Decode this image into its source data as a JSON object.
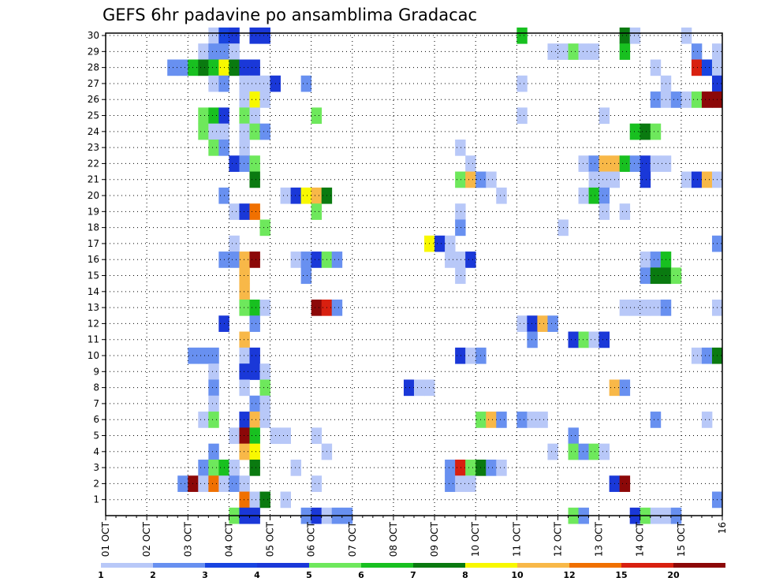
{
  "chart_data": {
    "type": "heatmap",
    "title": "GEFS 6hr padavine po ansamblima Gradacac",
    "xlabel": "",
    "ylabel": "",
    "x_ticks": [
      "01 OCT",
      "02 OCT",
      "03 OCT",
      "04 OCT",
      "05 OCT",
      "06 OCT",
      "07 OCT",
      "08 OCT",
      "09 OCT",
      "10 OCT",
      "11 OCT",
      "12 OCT",
      "13 OCT",
      "14 OCT",
      "15 OCT",
      "16"
    ],
    "y_ticks": [
      "1",
      "2",
      "3",
      "4",
      "5",
      "6",
      "7",
      "8",
      "9",
      "10",
      "11",
      "12",
      "13",
      "14",
      "15",
      "16",
      "17",
      "18",
      "19",
      "20",
      "21",
      "22",
      "23",
      "24",
      "25",
      "26",
      "27",
      "28",
      "29",
      "30"
    ],
    "colorbar": {
      "labels": [
        "1",
        "2",
        "3",
        "4",
        "5",
        "6",
        "7",
        "8",
        "10",
        "12",
        "15",
        "20"
      ],
      "colors": [
        "#b8c8f8",
        "#6890f0",
        "#1844e0",
        "#1a38d8",
        "#6ee85c",
        "#18c020",
        "#0a7a10",
        "#f8f800",
        "#f8b848",
        "#f07000",
        "#d82010",
        "#8c0808"
      ]
    },
    "grid": true,
    "x_unit": "6-hour steps from 01 OCT 00Z",
    "y_unit": "ensemble member",
    "cells": [
      [
        10,
        30,
        1
      ],
      [
        11,
        30,
        3
      ],
      [
        12,
        30,
        4
      ],
      [
        14,
        30,
        4
      ],
      [
        15,
        30,
        4
      ],
      [
        40,
        30,
        6
      ],
      [
        50,
        30,
        7
      ],
      [
        51,
        30,
        1
      ],
      [
        56,
        30,
        1
      ],
      [
        9,
        29,
        1
      ],
      [
        10,
        29,
        2
      ],
      [
        11,
        29,
        2
      ],
      [
        12,
        29,
        1
      ],
      [
        43,
        29,
        1
      ],
      [
        44,
        29,
        1
      ],
      [
        45,
        29,
        5
      ],
      [
        46,
        29,
        1
      ],
      [
        47,
        29,
        1
      ],
      [
        50,
        29,
        6
      ],
      [
        57,
        29,
        2
      ],
      [
        59,
        29,
        1
      ],
      [
        6,
        28,
        2
      ],
      [
        7,
        28,
        2
      ],
      [
        8,
        28,
        6
      ],
      [
        9,
        28,
        7
      ],
      [
        10,
        28,
        6
      ],
      [
        11,
        28,
        8
      ],
      [
        12,
        28,
        7
      ],
      [
        13,
        28,
        4
      ],
      [
        14,
        28,
        4
      ],
      [
        53,
        28,
        1
      ],
      [
        57,
        28,
        11
      ],
      [
        58,
        28,
        3
      ],
      [
        59,
        28,
        1
      ],
      [
        10,
        27,
        1
      ],
      [
        11,
        27,
        2
      ],
      [
        13,
        27,
        1
      ],
      [
        14,
        27,
        1
      ],
      [
        15,
        27,
        1
      ],
      [
        16,
        27,
        4
      ],
      [
        19,
        27,
        2
      ],
      [
        40,
        27,
        1
      ],
      [
        54,
        27,
        1
      ],
      [
        59,
        27,
        4
      ],
      [
        13,
        26,
        1
      ],
      [
        14,
        26,
        8
      ],
      [
        15,
        26,
        1
      ],
      [
        53,
        26,
        2
      ],
      [
        54,
        26,
        1
      ],
      [
        55,
        26,
        2
      ],
      [
        56,
        26,
        1
      ],
      [
        57,
        26,
        5
      ],
      [
        58,
        26,
        12
      ],
      [
        59,
        26,
        12
      ],
      [
        9,
        25,
        5
      ],
      [
        10,
        25,
        6
      ],
      [
        11,
        25,
        4
      ],
      [
        13,
        25,
        5
      ],
      [
        14,
        25,
        1
      ],
      [
        20,
        25,
        5
      ],
      [
        40,
        25,
        1
      ],
      [
        48,
        25,
        1
      ],
      [
        9,
        24,
        5
      ],
      [
        10,
        24,
        1
      ],
      [
        11,
        24,
        1
      ],
      [
        13,
        24,
        1
      ],
      [
        14,
        24,
        5
      ],
      [
        15,
        24,
        2
      ],
      [
        51,
        24,
        6
      ],
      [
        52,
        24,
        7
      ],
      [
        53,
        24,
        5
      ],
      [
        10,
        23,
        5
      ],
      [
        11,
        23,
        2
      ],
      [
        13,
        23,
        1
      ],
      [
        34,
        23,
        1
      ],
      [
        12,
        22,
        4
      ],
      [
        13,
        22,
        2
      ],
      [
        14,
        22,
        5
      ],
      [
        35,
        22,
        1
      ],
      [
        46,
        22,
        1
      ],
      [
        47,
        22,
        2
      ],
      [
        48,
        22,
        9
      ],
      [
        49,
        22,
        9
      ],
      [
        50,
        22,
        6
      ],
      [
        51,
        22,
        2
      ],
      [
        52,
        22,
        4
      ],
      [
        53,
        22,
        1
      ],
      [
        54,
        22,
        1
      ],
      [
        14,
        21,
        7
      ],
      [
        34,
        21,
        5
      ],
      [
        35,
        21,
        9
      ],
      [
        36,
        21,
        2
      ],
      [
        37,
        21,
        1
      ],
      [
        47,
        21,
        1
      ],
      [
        48,
        21,
        1
      ],
      [
        49,
        21,
        1
      ],
      [
        52,
        21,
        4
      ],
      [
        56,
        21,
        1
      ],
      [
        57,
        21,
        4
      ],
      [
        58,
        21,
        9
      ],
      [
        59,
        21,
        1
      ],
      [
        11,
        20,
        2
      ],
      [
        17,
        20,
        1
      ],
      [
        18,
        20,
        4
      ],
      [
        19,
        20,
        8
      ],
      [
        20,
        20,
        9
      ],
      [
        21,
        20,
        7
      ],
      [
        38,
        20,
        1
      ],
      [
        46,
        20,
        1
      ],
      [
        47,
        20,
        6
      ],
      [
        48,
        20,
        2
      ],
      [
        12,
        19,
        1
      ],
      [
        13,
        19,
        4
      ],
      [
        14,
        19,
        10
      ],
      [
        20,
        19,
        5
      ],
      [
        34,
        19,
        1
      ],
      [
        48,
        19,
        1
      ],
      [
        50,
        19,
        1
      ],
      [
        15,
        18,
        5
      ],
      [
        34,
        18,
        2
      ],
      [
        44,
        18,
        1
      ],
      [
        12,
        17,
        1
      ],
      [
        31,
        17,
        8
      ],
      [
        32,
        17,
        4
      ],
      [
        33,
        17,
        1
      ],
      [
        59,
        17,
        2
      ],
      [
        11,
        16,
        2
      ],
      [
        12,
        16,
        2
      ],
      [
        13,
        16,
        9
      ],
      [
        14,
        16,
        12
      ],
      [
        18,
        16,
        1
      ],
      [
        19,
        16,
        2
      ],
      [
        20,
        16,
        4
      ],
      [
        21,
        16,
        5
      ],
      [
        22,
        16,
        2
      ],
      [
        33,
        16,
        1
      ],
      [
        34,
        16,
        1
      ],
      [
        35,
        16,
        4
      ],
      [
        52,
        16,
        1
      ],
      [
        53,
        16,
        2
      ],
      [
        54,
        16,
        6
      ],
      [
        13,
        15,
        9
      ],
      [
        19,
        15,
        2
      ],
      [
        34,
        15,
        1
      ],
      [
        52,
        15,
        2
      ],
      [
        53,
        15,
        7
      ],
      [
        54,
        15,
        7
      ],
      [
        55,
        15,
        5
      ],
      [
        13,
        14,
        9
      ],
      [
        13,
        13,
        5
      ],
      [
        14,
        13,
        6
      ],
      [
        15,
        13,
        1
      ],
      [
        20,
        13,
        12
      ],
      [
        21,
        13,
        11
      ],
      [
        22,
        13,
        2
      ],
      [
        50,
        13,
        1
      ],
      [
        51,
        13,
        1
      ],
      [
        52,
        13,
        1
      ],
      [
        53,
        13,
        1
      ],
      [
        54,
        13,
        2
      ],
      [
        59,
        13,
        1
      ],
      [
        11,
        12,
        4
      ],
      [
        14,
        12,
        2
      ],
      [
        40,
        12,
        1
      ],
      [
        41,
        12,
        4
      ],
      [
        42,
        12,
        9
      ],
      [
        43,
        12,
        2
      ],
      [
        13,
        11,
        9
      ],
      [
        41,
        11,
        2
      ],
      [
        45,
        11,
        4
      ],
      [
        46,
        11,
        5
      ],
      [
        47,
        11,
        1
      ],
      [
        48,
        11,
        4
      ],
      [
        8,
        10,
        2
      ],
      [
        9,
        10,
        2
      ],
      [
        10,
        10,
        2
      ],
      [
        13,
        10,
        1
      ],
      [
        14,
        10,
        4
      ],
      [
        34,
        10,
        4
      ],
      [
        35,
        10,
        1
      ],
      [
        36,
        10,
        2
      ],
      [
        57,
        10,
        1
      ],
      [
        58,
        10,
        2
      ],
      [
        59,
        10,
        7
      ],
      [
        10,
        9,
        1
      ],
      [
        13,
        9,
        4
      ],
      [
        14,
        9,
        4
      ],
      [
        15,
        9,
        1
      ],
      [
        10,
        8,
        2
      ],
      [
        13,
        8,
        1
      ],
      [
        15,
        8,
        5
      ],
      [
        29,
        8,
        4
      ],
      [
        30,
        8,
        1
      ],
      [
        31,
        8,
        1
      ],
      [
        49,
        8,
        9
      ],
      [
        50,
        8,
        2
      ],
      [
        10,
        7,
        1
      ],
      [
        14,
        7,
        2
      ],
      [
        15,
        7,
        1
      ],
      [
        9,
        6,
        1
      ],
      [
        10,
        6,
        5
      ],
      [
        13,
        6,
        4
      ],
      [
        14,
        6,
        9
      ],
      [
        15,
        6,
        1
      ],
      [
        36,
        6,
        5
      ],
      [
        37,
        6,
        9
      ],
      [
        38,
        6,
        2
      ],
      [
        40,
        6,
        2
      ],
      [
        41,
        6,
        1
      ],
      [
        42,
        6,
        1
      ],
      [
        53,
        6,
        2
      ],
      [
        58,
        6,
        1
      ],
      [
        12,
        5,
        1
      ],
      [
        13,
        5,
        12
      ],
      [
        14,
        5,
        6
      ],
      [
        16,
        5,
        1
      ],
      [
        17,
        5,
        1
      ],
      [
        20,
        5,
        1
      ],
      [
        45,
        5,
        2
      ],
      [
        10,
        4,
        2
      ],
      [
        13,
        4,
        9
      ],
      [
        14,
        4,
        8
      ],
      [
        21,
        4,
        1
      ],
      [
        43,
        4,
        1
      ],
      [
        45,
        4,
        5
      ],
      [
        46,
        4,
        2
      ],
      [
        47,
        4,
        5
      ],
      [
        48,
        4,
        1
      ],
      [
        9,
        3,
        2
      ],
      [
        10,
        3,
        5
      ],
      [
        11,
        3,
        6
      ],
      [
        12,
        3,
        1
      ],
      [
        14,
        3,
        7
      ],
      [
        18,
        3,
        1
      ],
      [
        33,
        3,
        2
      ],
      [
        34,
        3,
        11
      ],
      [
        35,
        3,
        5
      ],
      [
        36,
        3,
        7
      ],
      [
        37,
        3,
        2
      ],
      [
        38,
        3,
        1
      ],
      [
        7,
        2,
        2
      ],
      [
        8,
        2,
        12
      ],
      [
        9,
        2,
        1
      ],
      [
        10,
        2,
        10
      ],
      [
        11,
        2,
        1
      ],
      [
        12,
        2,
        2
      ],
      [
        13,
        2,
        1
      ],
      [
        20,
        2,
        1
      ],
      [
        33,
        2,
        2
      ],
      [
        34,
        2,
        1
      ],
      [
        35,
        2,
        1
      ],
      [
        49,
        2,
        4
      ],
      [
        50,
        2,
        12
      ],
      [
        13,
        1,
        10
      ],
      [
        14,
        1,
        1
      ],
      [
        15,
        1,
        7
      ],
      [
        17,
        1,
        1
      ],
      [
        59,
        1,
        2
      ],
      [
        12,
        0,
        5
      ],
      [
        13,
        0,
        4
      ],
      [
        14,
        0,
        4
      ],
      [
        19,
        0,
        2
      ],
      [
        20,
        0,
        4
      ],
      [
        21,
        0,
        1
      ],
      [
        22,
        0,
        2
      ],
      [
        23,
        0,
        2
      ],
      [
        45,
        0,
        5
      ],
      [
        46,
        0,
        2
      ],
      [
        51,
        0,
        4
      ],
      [
        52,
        0,
        5
      ],
      [
        53,
        0,
        1
      ],
      [
        54,
        0,
        1
      ],
      [
        55,
        0,
        2
      ]
    ]
  }
}
